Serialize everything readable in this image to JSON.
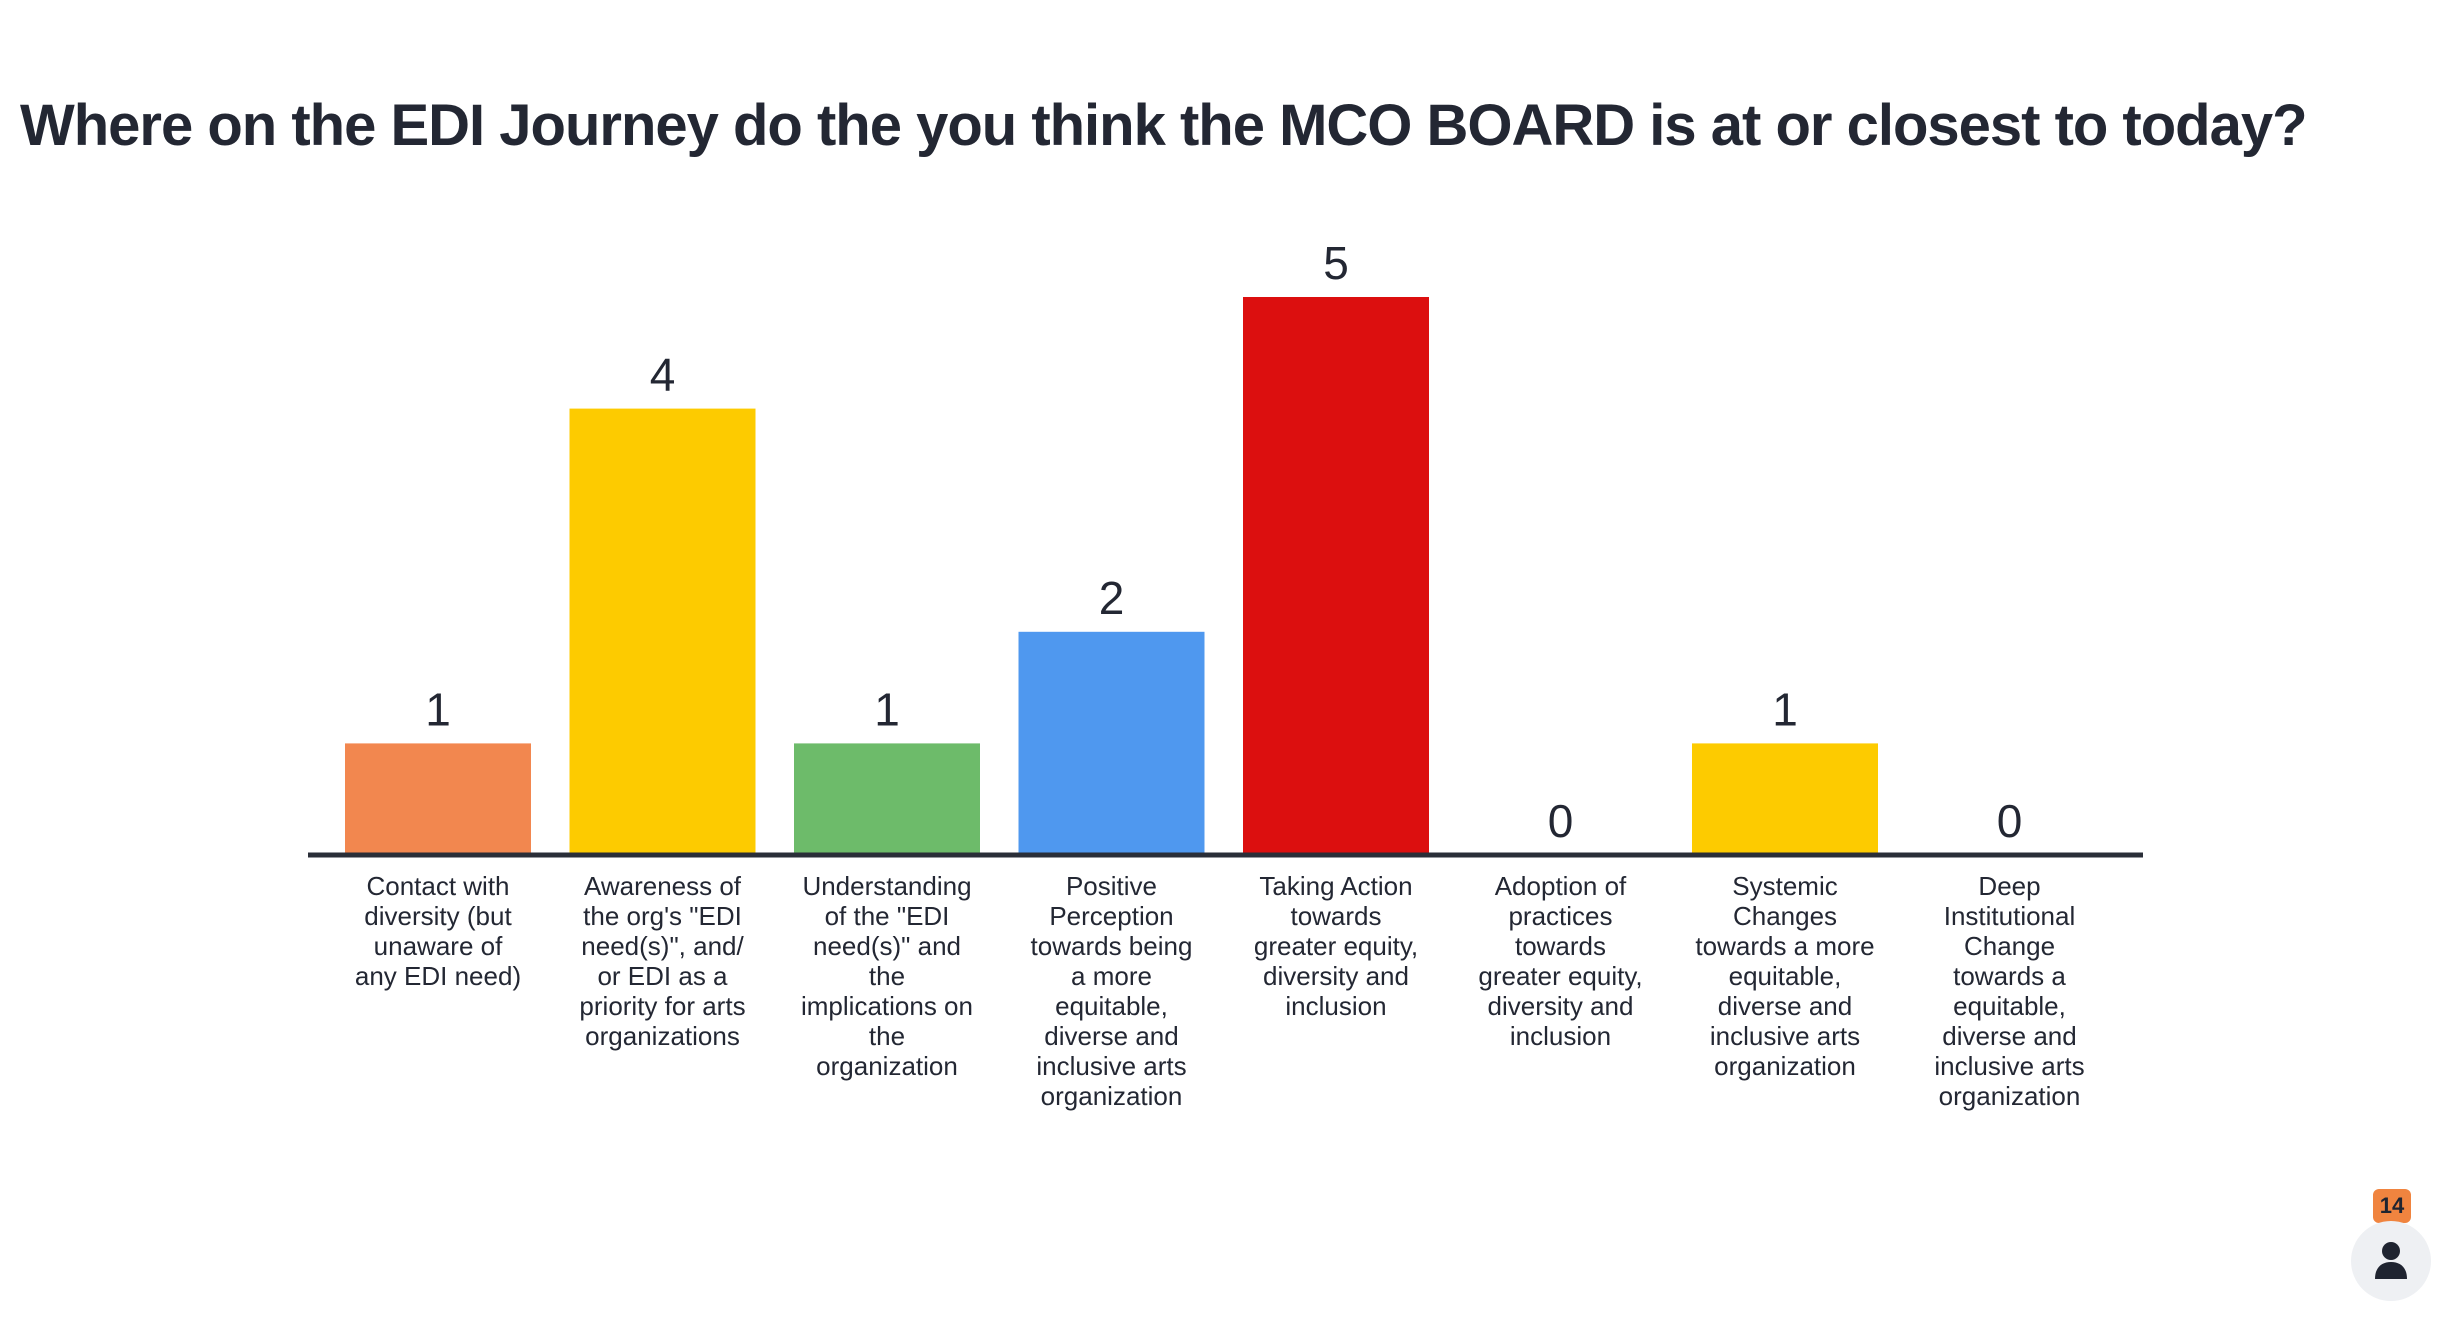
{
  "title": "Where on the EDI Journey do the you think the MCO BOARD is at or closest to today?",
  "participants": {
    "count": "14",
    "icon": "person-icon"
  },
  "chart_data": {
    "type": "bar",
    "categories": [
      "Contact with diversity (but unaware of any EDI need)",
      "Awareness of the org's \"EDI need(s)\", and/ or EDI as a priority for arts organizations",
      "Understanding of the \"EDI need(s)\" and the implications on the organization",
      "Positive Perception towards being a more equitable, diverse and inclusive arts organization",
      "Taking Action towards greater equity, diversity and inclusion",
      "Adoption of practices towards greater equity, diversity and inclusion",
      "Systemic Changes towards a more equitable, diverse and inclusive arts organization",
      "Deep Institutional Change towards a equitable, diverse and inclusive arts organization"
    ],
    "category_lines": [
      [
        "Contact with",
        "diversity (but",
        "unaware of",
        "any EDI need)"
      ],
      [
        "Awareness of",
        "the org's \"EDI",
        "need(s)\", and/",
        "or EDI as a",
        "priority for arts",
        "organizations"
      ],
      [
        "Understanding",
        "of the \"EDI",
        "need(s)\" and",
        "the",
        "implications on",
        "the",
        "organization"
      ],
      [
        "Positive",
        "Perception",
        "towards being",
        "a more",
        "equitable,",
        "diverse and",
        "inclusive arts",
        "organization"
      ],
      [
        "Taking Action",
        "towards",
        "greater equity,",
        "diversity and",
        "inclusion"
      ],
      [
        "Adoption of",
        "practices",
        "towards",
        "greater equity,",
        "diversity and",
        "inclusion"
      ],
      [
        "Systemic",
        "Changes",
        "towards a more",
        "equitable,",
        "diverse and",
        "inclusive arts",
        "organization"
      ],
      [
        "Deep",
        "Institutional",
        "Change",
        "towards a",
        "equitable,",
        "diverse and",
        "inclusive arts",
        "organization"
      ]
    ],
    "values": [
      1,
      4,
      1,
      2,
      5,
      0,
      1,
      0
    ],
    "value_labels": [
      "1",
      "4",
      "1",
      "2",
      "5",
      "0",
      "1",
      "0"
    ],
    "colors": [
      "#f2874f",
      "#fdcb00",
      "#6dbb6a",
      "#4f98ef",
      "#dc0f0f",
      "#fdcb00",
      "#fdcb00",
      "#fdcb00"
    ],
    "ylim": [
      0,
      5
    ],
    "grid": false,
    "legend": "none"
  }
}
